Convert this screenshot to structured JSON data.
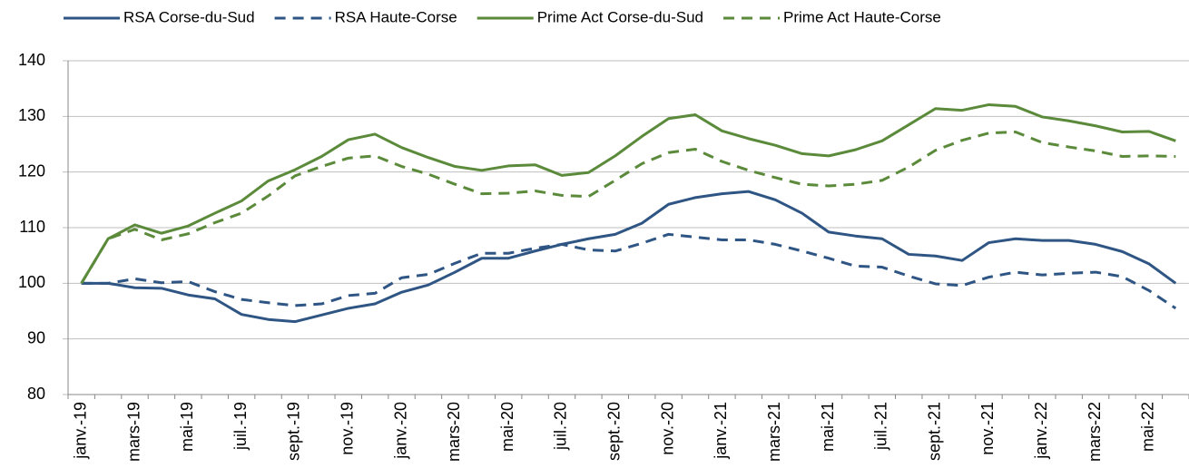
{
  "chart_data": {
    "type": "line",
    "categories": [
      "janv.-19",
      null,
      "mars-19",
      null,
      "mai-19",
      null,
      "juil.-19",
      null,
      "sept.-19",
      null,
      "nov.-19",
      null,
      "janv.-20",
      null,
      "mars-20",
      null,
      "mai-20",
      null,
      "juil.-20",
      null,
      "sept.-20",
      null,
      "nov.-20",
      null,
      "janv.-21",
      null,
      "mars-21",
      null,
      "mai-21",
      null,
      "juil.-21",
      null,
      "sept.-21",
      null,
      "nov.-21",
      null,
      "janv.-22",
      null,
      "mars-22",
      null,
      "mai-22",
      null
    ],
    "series": [
      {
        "name": "RSA Corse-du-Sud",
        "color": "#2e5583",
        "dash": false,
        "values": [
          100,
          100,
          99.2,
          99.1,
          97.9,
          97.2,
          94.4,
          93.5,
          93.1,
          94.3,
          95.5,
          96.3,
          98.4,
          99.7,
          102,
          104.5,
          104.5,
          105.8,
          107,
          108,
          108.8,
          110.8,
          114.2,
          115.4,
          116.1,
          116.5,
          115,
          112.6,
          109.2,
          108.5,
          108,
          105.2,
          104.9,
          104.1,
          107.3,
          108,
          107.7,
          107.7,
          107,
          105.7,
          103.5,
          100
        ]
      },
      {
        "name": "RSA Haute-Corse",
        "color": "#2e5583",
        "dash": true,
        "values": [
          100,
          100,
          100.8,
          100.1,
          100.3,
          98.5,
          97.1,
          96.5,
          96,
          96.3,
          97.8,
          98.2,
          101,
          101.6,
          103.6,
          105.4,
          105.4,
          106.3,
          107,
          106,
          105.8,
          107.2,
          108.8,
          108.3,
          107.8,
          107.8,
          107,
          105.8,
          104.5,
          103.1,
          102.9,
          101.3,
          99.9,
          99.6,
          101.1,
          102,
          101.5,
          101.8,
          102,
          101.2,
          98.7,
          95.5
        ]
      },
      {
        "name": "Prime Act Corse-du-Sud",
        "color": "#5a8a3a",
        "dash": false,
        "values": [
          100,
          108,
          110.5,
          109,
          110.3,
          112.6,
          114.8,
          118.4,
          120.4,
          122.8,
          125.8,
          126.8,
          124.4,
          122.6,
          121,
          120.3,
          121.1,
          121.3,
          119.4,
          119.9,
          122.9,
          126.4,
          129.6,
          130.3,
          127.4,
          126,
          124.8,
          123.3,
          122.9,
          124,
          125.6,
          128.5,
          131.4,
          131.1,
          132.1,
          131.8,
          129.9,
          129.2,
          128.3,
          127.2,
          127.3,
          125.6
        ]
      },
      {
        "name": "Prime Act Haute-Corse",
        "color": "#5a8a3a",
        "dash": true,
        "values": [
          100,
          108,
          109.7,
          107.8,
          108.9,
          110.9,
          112.6,
          115.7,
          119.3,
          121,
          122.5,
          122.9,
          121,
          119.6,
          117.8,
          116.1,
          116.2,
          116.6,
          115.8,
          115.6,
          118.5,
          121.5,
          123.5,
          124.1,
          121.9,
          120.3,
          119,
          117.8,
          117.5,
          117.8,
          118.5,
          120.9,
          123.9,
          125.7,
          127,
          127.2,
          125.3,
          124.5,
          123.8,
          122.8,
          122.9,
          122.8
        ]
      }
    ],
    "ylim": [
      80,
      140
    ],
    "yticks": [
      80,
      90,
      100,
      110,
      120,
      130,
      140
    ],
    "grid": true,
    "legend": "top"
  }
}
